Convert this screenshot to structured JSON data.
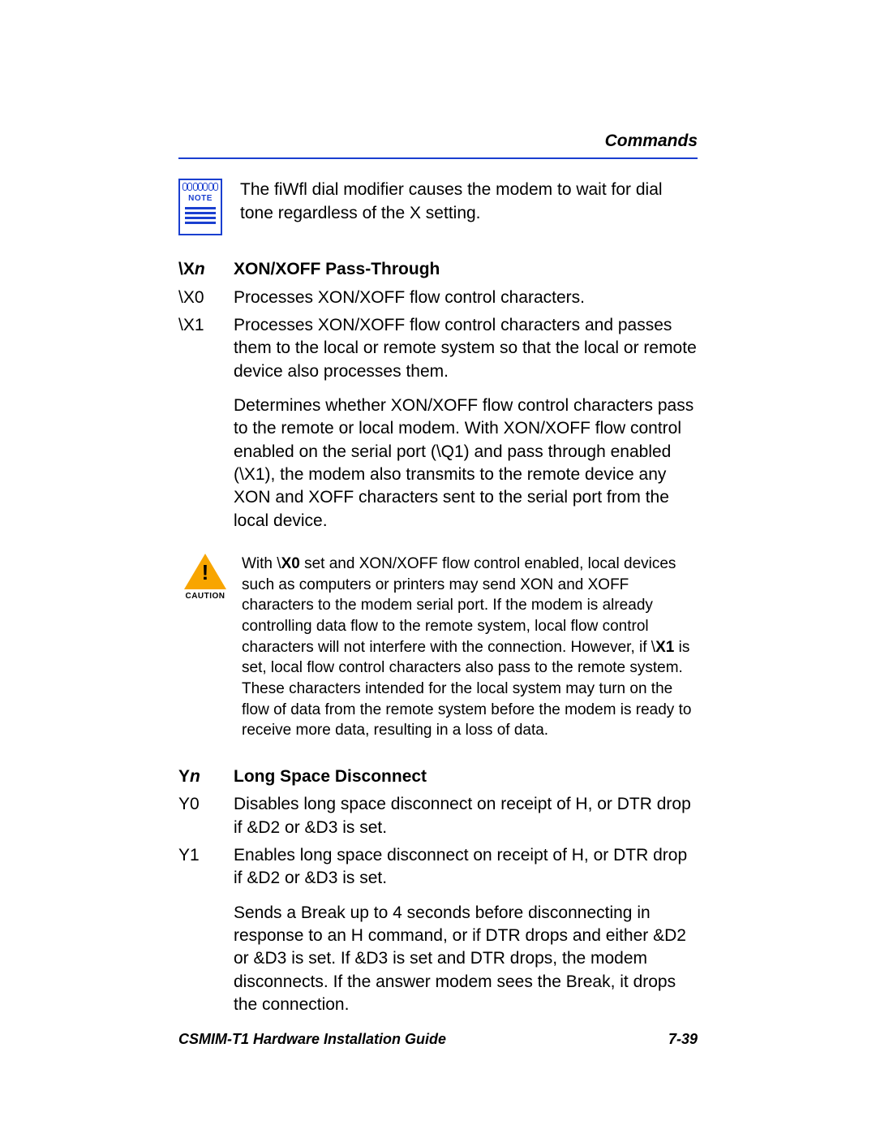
{
  "header": {
    "title": "Commands"
  },
  "note": {
    "label": "NOTE",
    "text": "The ﬁWﬂ dial modiﬁer causes the modem to wait for dial tone regardless of the X setting."
  },
  "xon": {
    "cmd_prefix": "\\X",
    "param": "n",
    "title": "XON/XOFF Pass-Through",
    "rows": [
      {
        "cmd": "\\X0",
        "desc": "Processes XON/XOFF flow control characters."
      },
      {
        "cmd": "\\X1",
        "desc": "Processes XON/XOFF flow control characters and passes them to the local or remote system so that the local or remote device also processes them."
      }
    ],
    "explain": "Determines whether XON/XOFF flow control characters pass to the remote or local modem. With XON/XOFF flow control enabled on the serial port (\\Q1) and pass through enabled (\\X1), the modem also transmits to the remote device any XON and XOFF characters sent to the serial port from the local device."
  },
  "caution": {
    "label": "CAUTION",
    "t1": "With \\",
    "b1": "X0",
    "t2": " set and XON/XOFF ﬂow control enabled, local devices such as computers or printers may send XON and XOFF characters to the modem serial port. If the modem is already controlling data ﬂow to the remote system, local ﬂow control characters will not interfere with the connection. However, if \\",
    "b2": "X1",
    "t3": " is set, local ﬂow control characters also pass to the remote system. These characters intended for the local system may turn on the ﬂow of data from the remote system before the modem is ready to receive more data, resulting in a loss of data."
  },
  "yn": {
    "cmd_prefix": "Y",
    "param": "n",
    "title": "Long Space Disconnect",
    "rows": [
      {
        "cmd": "Y0",
        "desc": "Disables long space disconnect on receipt of H, or DTR drop if &D2 or &D3 is set."
      },
      {
        "cmd": "Y1",
        "desc": "Enables long space disconnect on receipt of H, or DTR drop if &D2 or &D3 is set."
      }
    ],
    "explain": "Sends a Break up to 4 seconds before disconnecting in response to an H command, or if DTR drops and either &D2 or &D3 is set. If &D3 is set and DTR drops, the modem disconnects. If the answer modem sees the Break, it drops the connection."
  },
  "footer": {
    "left": "CSMIM-T1 Hardware Installation Guide",
    "right": "7-39"
  }
}
